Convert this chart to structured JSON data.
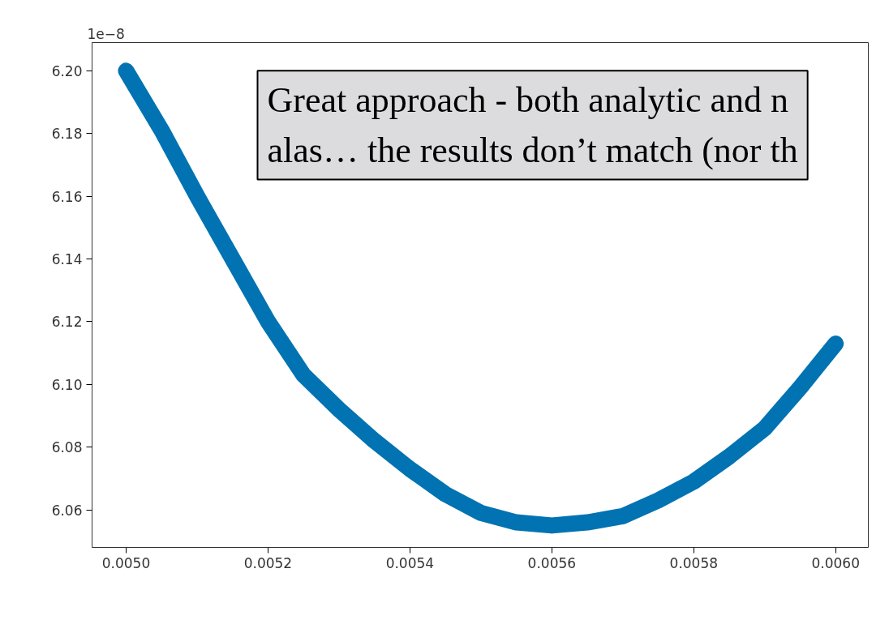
{
  "chart_data": {
    "type": "line",
    "x": [
      0.005,
      0.00505,
      0.0051,
      0.00515,
      0.0052,
      0.00525,
      0.0053,
      0.00535,
      0.0054,
      0.00545,
      0.0055,
      0.00555,
      0.0056,
      0.00565,
      0.0057,
      0.00575,
      0.0058,
      0.00585,
      0.0059,
      0.00595,
      0.006
    ],
    "series": [
      {
        "color": "#0173b2",
        "values": [
          6.2,
          6.181,
          6.16,
          6.14,
          6.12,
          6.103,
          6.092,
          6.082,
          6.073,
          6.065,
          6.059,
          6.056,
          6.055,
          6.056,
          6.058,
          6.063,
          6.069,
          6.077,
          6.086,
          6.099,
          6.113
        ]
      }
    ],
    "xlim": [
      0.004952,
      0.006046
    ],
    "ylim": [
      6.048,
      6.209
    ],
    "xticks": [
      {
        "value": 0.005,
        "label": "0.0050"
      },
      0.0052,
      0.0054,
      0.0056,
      0.0058,
      {
        "value": 0.006,
        "label": "0.0060"
      }
    ],
    "yticks": [
      6.06,
      6.08,
      {
        "value": 6.1,
        "label": "6.10"
      },
      6.12,
      6.14,
      6.16,
      6.18,
      {
        "value": 6.2,
        "label": "6.20"
      }
    ],
    "grid": false,
    "marker": "none",
    "line_style": "solid",
    "annotations": [
      "1e−8",
      "Great approach - both analytic and n\nalas… the results don’t match (nor th"
    ]
  }
}
